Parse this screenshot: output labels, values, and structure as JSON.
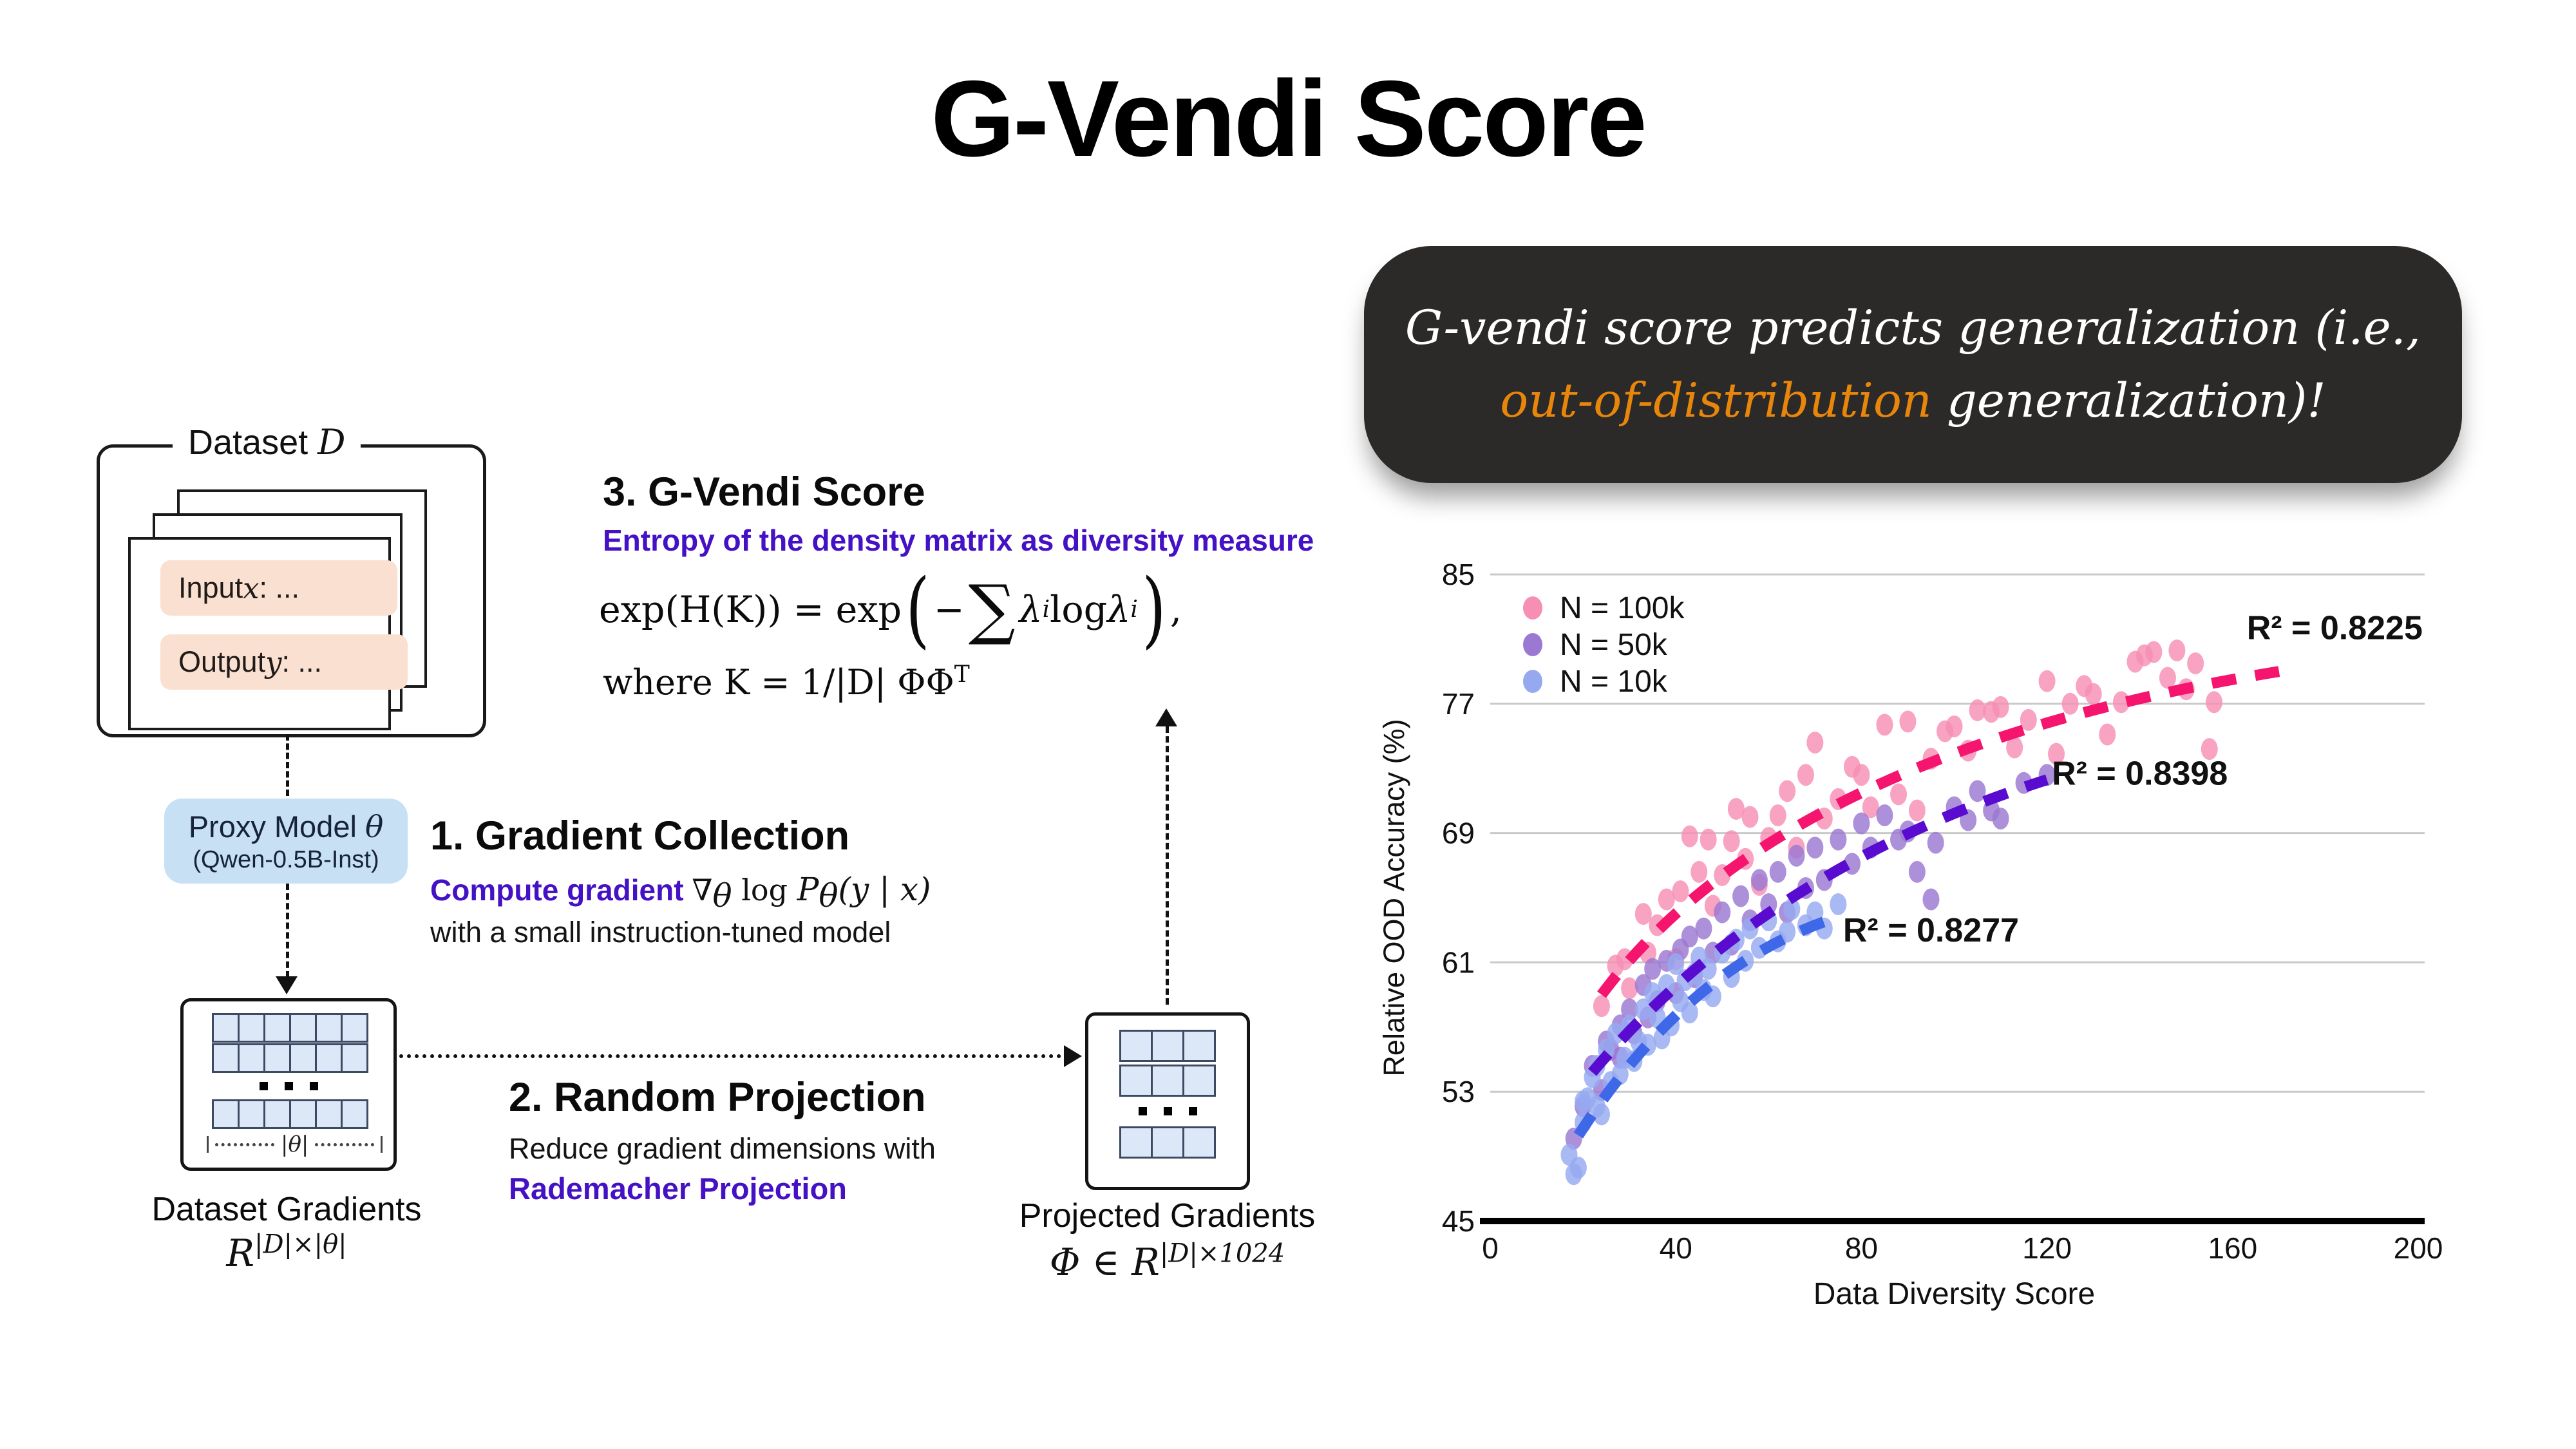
{
  "title": "G-Vendi Score",
  "callout": {
    "line1": "G-vendi score predicts generalization (i.e.,",
    "highlight": "out-of-distribution",
    "line2_rest": " generalization)!"
  },
  "dataset": {
    "label_prefix": "Dataset ",
    "label_var": "D",
    "input_prefix": "Input ",
    "input_var": "x",
    "input_suffix": ": ...",
    "output_prefix": "Output ",
    "output_var": "y",
    "output_suffix": ": ..."
  },
  "proxy": {
    "line1_prefix": "Proxy Model ",
    "line1_var": "θ",
    "line2": "(Qwen-0.5B-Inst)"
  },
  "step1": {
    "heading": "1. Gradient Collection",
    "accent": "Compute gradient ",
    "m1": "∇",
    "m1_sub": "θ",
    "m2": " log ",
    "m3": "P",
    "m3_sub": "θ",
    "m4": "(y | x)",
    "line2": "with a small instruction-tuned model"
  },
  "step2": {
    "heading": "2. Random Projection",
    "line1": "Reduce gradient dimensions with",
    "line2": "Rademacher Projection"
  },
  "step3": {
    "heading": "3. G-Vendi Score",
    "subheading": "Entropy of the density matrix as diversity measure",
    "f_left": "exp(H(K)) = exp",
    "f_lparen": "(",
    "f_minus": "−",
    "f_sum": "∑",
    "f_lam1": "λ",
    "f_lam1_sub": "i",
    "f_log": " log ",
    "f_lam2": "λ",
    "f_lam2_sub": "i",
    "f_rparen": ")",
    "f_comma": ",",
    "w1": "where K = 1/|D| ΦΦ",
    "w_sup": "T"
  },
  "dataset_gradients": {
    "caption": "Dataset Gradients",
    "f_base": "R",
    "f_sup": "|D|×|θ|",
    "theta_label": "|θ|"
  },
  "projected_gradients": {
    "caption": "Projected Gradients",
    "f_base": "Φ ∈ R",
    "f_sup": "|D|×1024"
  },
  "chart_data": {
    "type": "scatter",
    "xlabel": "Data Diversity Score",
    "ylabel": "Relative OOD Accuracy (%)",
    "xlim": [
      0,
      200
    ],
    "ylim": [
      45,
      85
    ],
    "xticks": [
      0,
      40,
      80,
      120,
      160,
      200
    ],
    "yticks": [
      45,
      53,
      61,
      69,
      77,
      85
    ],
    "grid": "horizontal",
    "legend_position": "top-left",
    "series": [
      {
        "name": "N = 100k",
        "color": "#f78fb5",
        "trend_color": "#f5146e",
        "r2_label": "R² = 0.8225",
        "r2_pos": [
          182,
          81
        ],
        "trend": [
          [
            24,
            59
          ],
          [
            80,
            71.5
          ],
          [
            170,
            79
          ]
        ],
        "points": [
          [
            24,
            58.3
          ],
          [
            27,
            60.8
          ],
          [
            29,
            61.2
          ],
          [
            30,
            59.4
          ],
          [
            33,
            64.0
          ],
          [
            34,
            61.6
          ],
          [
            36,
            63.3
          ],
          [
            38,
            64.9
          ],
          [
            40,
            61.2
          ],
          [
            41,
            65.4
          ],
          [
            43,
            68.8
          ],
          [
            45,
            66.6
          ],
          [
            47,
            68.6
          ],
          [
            48,
            64.5
          ],
          [
            50,
            66.4
          ],
          [
            52,
            68.5
          ],
          [
            53,
            70.5
          ],
          [
            55,
            67.4
          ],
          [
            56,
            70.0
          ],
          [
            58,
            65.8
          ],
          [
            60,
            68.7
          ],
          [
            62,
            70.1
          ],
          [
            64,
            71.6
          ],
          [
            66,
            68.1
          ],
          [
            68,
            72.6
          ],
          [
            70,
            74.6
          ],
          [
            72,
            69.9
          ],
          [
            75,
            71.1
          ],
          [
            78,
            73.1
          ],
          [
            80,
            72.6
          ],
          [
            82,
            70.6
          ],
          [
            85,
            75.7
          ],
          [
            88,
            71.4
          ],
          [
            90,
            75.9
          ],
          [
            92,
            70.4
          ],
          [
            95,
            73.6
          ],
          [
            98,
            75.3
          ],
          [
            100,
            75.6
          ],
          [
            103,
            74.1
          ],
          [
            105,
            76.6
          ],
          [
            108,
            76.5
          ],
          [
            110,
            76.8
          ],
          [
            113,
            74.3
          ],
          [
            116,
            76.0
          ],
          [
            120,
            78.4
          ],
          [
            122,
            73.9
          ],
          [
            125,
            77.0
          ],
          [
            128,
            78.1
          ],
          [
            130,
            77.6
          ],
          [
            133,
            75.1
          ],
          [
            136,
            77.1
          ],
          [
            139,
            79.6
          ],
          [
            141,
            80.0
          ],
          [
            143,
            80.2
          ],
          [
            146,
            78.6
          ],
          [
            148,
            80.3
          ],
          [
            150,
            77.9
          ],
          [
            152,
            79.5
          ],
          [
            155,
            74.2
          ],
          [
            156,
            77.1
          ]
        ]
      },
      {
        "name": "N = 50k",
        "color": "#9b78d2",
        "trend_color": "#5a0bd0",
        "r2_label": "R² = 0.8398",
        "r2_pos": [
          140,
          72
        ],
        "trend": [
          [
            22,
            54.2
          ],
          [
            65,
            65
          ],
          [
            120,
            72.3
          ]
        ],
        "points": [
          [
            18,
            50.1
          ],
          [
            20,
            52.1
          ],
          [
            22,
            54.6
          ],
          [
            24,
            53.1
          ],
          [
            25,
            56.1
          ],
          [
            26,
            55.6
          ],
          [
            28,
            57.1
          ],
          [
            28,
            55.1
          ],
          [
            30,
            58.1
          ],
          [
            31,
            56.6
          ],
          [
            33,
            59.6
          ],
          [
            34,
            57.6
          ],
          [
            35,
            60.6
          ],
          [
            36,
            58.6
          ],
          [
            38,
            61.1
          ],
          [
            40,
            59.1
          ],
          [
            41,
            61.8
          ],
          [
            43,
            62.6
          ],
          [
            44,
            60.1
          ],
          [
            46,
            63.1
          ],
          [
            48,
            61.6
          ],
          [
            50,
            64.1
          ],
          [
            52,
            62.1
          ],
          [
            54,
            65.1
          ],
          [
            56,
            63.6
          ],
          [
            58,
            66.1
          ],
          [
            60,
            64.6
          ],
          [
            62,
            66.6
          ],
          [
            64,
            64.1
          ],
          [
            66,
            67.6
          ],
          [
            68,
            65.6
          ],
          [
            70,
            68.1
          ],
          [
            72,
            66.1
          ],
          [
            75,
            68.6
          ],
          [
            78,
            67.1
          ],
          [
            80,
            69.6
          ],
          [
            82,
            68.1
          ],
          [
            85,
            70.1
          ],
          [
            88,
            68.6
          ],
          [
            90,
            69.1
          ],
          [
            92,
            66.6
          ],
          [
            95,
            64.9
          ],
          [
            96,
            68.4
          ],
          [
            100,
            70.6
          ],
          [
            103,
            69.8
          ],
          [
            105,
            71.6
          ],
          [
            108,
            70.4
          ],
          [
            110,
            69.9
          ],
          [
            115,
            72.1
          ],
          [
            120,
            72.6
          ]
        ]
      },
      {
        "name": "N = 10k",
        "color": "#96a9f0",
        "trend_color": "#3e68e8",
        "r2_label": "R² = 0.8277",
        "r2_pos": [
          95,
          62.3
        ],
        "trend": [
          [
            19,
            50.3
          ],
          [
            45,
            59
          ],
          [
            75,
            63.8
          ]
        ],
        "points": [
          [
            17,
            49.1
          ],
          [
            18,
            47.9
          ],
          [
            19,
            48.3
          ],
          [
            20,
            52.4
          ],
          [
            20,
            51.1
          ],
          [
            21,
            52.6
          ],
          [
            22,
            53.9
          ],
          [
            23,
            52.1
          ],
          [
            23,
            54.6
          ],
          [
            24,
            51.6
          ],
          [
            25,
            55.6
          ],
          [
            26,
            53.6
          ],
          [
            27,
            56.6
          ],
          [
            28,
            54.1
          ],
          [
            29,
            55.1
          ],
          [
            30,
            57.1
          ],
          [
            31,
            54.9
          ],
          [
            32,
            56.1
          ],
          [
            33,
            58.1
          ],
          [
            34,
            55.9
          ],
          [
            35,
            59.1
          ],
          [
            36,
            57.6
          ],
          [
            37,
            56.3
          ],
          [
            38,
            59.6
          ],
          [
            39,
            57.1
          ],
          [
            40,
            60.9
          ],
          [
            41,
            58.6
          ],
          [
            42,
            59.9
          ],
          [
            43,
            57.9
          ],
          [
            44,
            60.3
          ],
          [
            45,
            61.3
          ],
          [
            46,
            59.3
          ],
          [
            47,
            60.6
          ],
          [
            48,
            58.9
          ],
          [
            50,
            61.6
          ],
          [
            52,
            60.1
          ],
          [
            53,
            62.4
          ],
          [
            55,
            61.1
          ],
          [
            56,
            63.1
          ],
          [
            58,
            61.9
          ],
          [
            60,
            63.6
          ],
          [
            62,
            62.3
          ],
          [
            64,
            62.9
          ],
          [
            65,
            64.3
          ],
          [
            68,
            63.3
          ],
          [
            70,
            64.1
          ],
          [
            72,
            63.1
          ],
          [
            75,
            64.6
          ]
        ]
      }
    ]
  }
}
